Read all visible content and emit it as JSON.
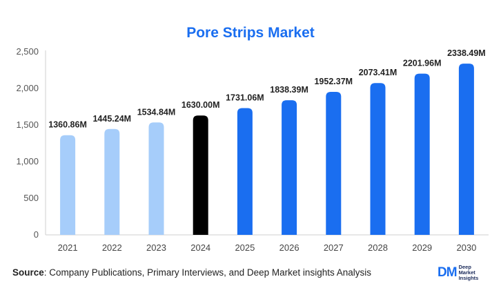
{
  "chart_data": {
    "type": "bar",
    "title": "Pore Strips Market",
    "categories": [
      "2021",
      "2022",
      "2023",
      "2024",
      "2025",
      "2026",
      "2027",
      "2028",
      "2029",
      "2030"
    ],
    "values": [
      1360.86,
      1445.24,
      1534.84,
      1630.0,
      1731.06,
      1838.39,
      1952.37,
      2073.41,
      2201.96,
      2338.49
    ],
    "data_labels": [
      "1360.86M",
      "1445.24M",
      "1534.84M",
      "1630.00M",
      "1731.06M",
      "1838.39M",
      "1952.37M",
      "2073.41M",
      "2201.96M",
      "2338.49M"
    ],
    "bar_colors": [
      "#a6cdfa",
      "#a6cdfa",
      "#a6cdfa",
      "#000000",
      "#1a6ef0",
      "#1a6ef0",
      "#1a6ef0",
      "#1a6ef0",
      "#1a6ef0",
      "#1a6ef0"
    ],
    "ylim": [
      0,
      2500
    ],
    "yticks": [
      0,
      500,
      1000,
      1500,
      2000,
      2500
    ],
    "ytick_labels": [
      "0",
      "500",
      "1,000",
      "1,500",
      "2,000",
      "2,500"
    ],
    "grid": false,
    "xlabel": "",
    "ylabel": ""
  },
  "footer": {
    "source_label": "Source",
    "source_text": ": Company Publications, Primary Interviews, and Deep Market insights Analysis"
  },
  "logo": {
    "mark": "DM",
    "line1": "Deep",
    "line2": "Market",
    "line3": "Insights"
  },
  "colors": {
    "accent": "#1a6ef0",
    "historical": "#a6cdfa",
    "base_year": "#000000"
  }
}
